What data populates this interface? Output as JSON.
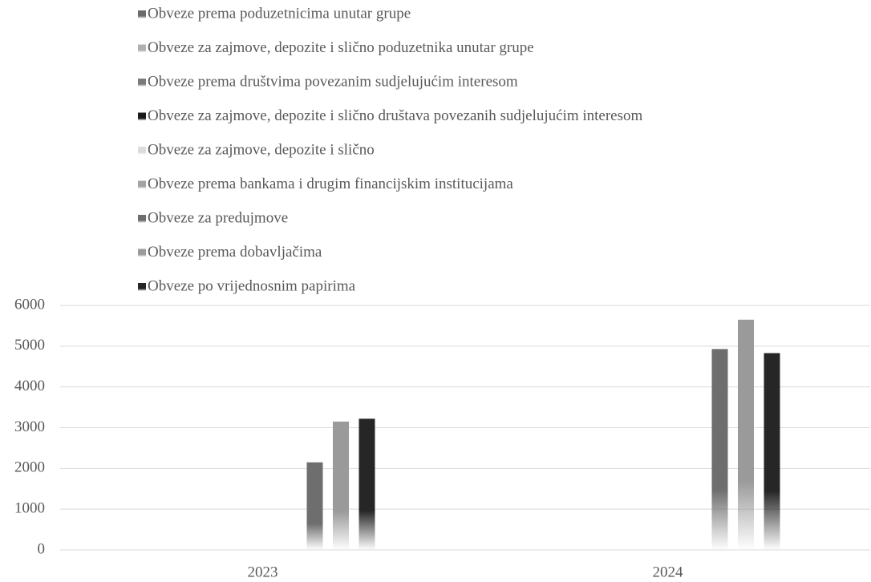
{
  "chart_data": {
    "type": "bar",
    "categories": [
      "2023",
      "2024"
    ],
    "series": [
      {
        "name": "Obveze prema poduzetnicima unutar grupe",
        "color": "#6b6b6b",
        "values": [
          0,
          0
        ]
      },
      {
        "name": "Obveze za zajmove, depozite i slično poduzetnika unutar grupe",
        "color": "#b0b0b0",
        "values": [
          0,
          0
        ]
      },
      {
        "name": "Obveze prema društvima povezanim sudjelujućim interesom",
        "color": "#7a7a7a",
        "values": [
          0,
          0
        ]
      },
      {
        "name": "Obveze za zajmove, depozite i slično društava povezanih sudjelujućim interesom",
        "color": "#1a1a1a",
        "values": [
          0,
          0
        ]
      },
      {
        "name": "Obveze za zajmove, depozite i slično",
        "color": "#dcdcdc",
        "values": [
          0,
          0
        ]
      },
      {
        "name": "Obveze prema bankama i drugim financijskim institucijama",
        "color": "#a3a3a3",
        "values": [
          0,
          0
        ]
      },
      {
        "name": "Obveze za predujmove",
        "color": "#6e6e6e",
        "values": [
          2150,
          4930
        ]
      },
      {
        "name": "Obveze prema dobavljačima",
        "color": "#9a9a9a",
        "values": [
          3150,
          5650
        ]
      },
      {
        "name": "Obveze po vrijednosnim papirima",
        "color": "#262626",
        "values": [
          3220,
          4830
        ]
      }
    ],
    "ylim": [
      0,
      6000
    ],
    "yticks": [
      0,
      1000,
      2000,
      3000,
      4000,
      5000,
      6000
    ],
    "grid": true,
    "legend": "top"
  }
}
